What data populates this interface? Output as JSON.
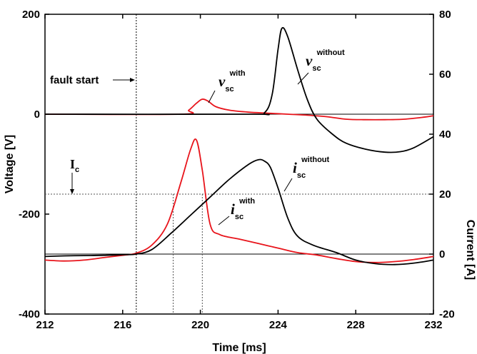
{
  "chart_data": {
    "type": "line",
    "xlabel": "Time [ms]",
    "ylabel": "Voltage [V]",
    "y2label": "Current [A]",
    "xlim": [
      212,
      232
    ],
    "ylim": [
      -400,
      200
    ],
    "y2lim": [
      -20,
      80
    ],
    "xticks": [
      "212",
      "216",
      "220",
      "224",
      "228",
      "232"
    ],
    "yticks": [
      "-400",
      "-200",
      "0",
      "200"
    ],
    "y2ticks": [
      "-20",
      "0",
      "20",
      "40",
      "60",
      "80"
    ],
    "colors": {
      "with": "#e8141b",
      "without": "#000000",
      "axis": "#000000",
      "guide": "#555555"
    },
    "annotations": {
      "fault_start": "fault start",
      "ic_main": "I",
      "ic_sub": "c",
      "v_with": {
        "main": "v",
        "sub": "sc",
        "sup": "with"
      },
      "v_without": {
        "main": "v",
        "sub": "sc",
        "sup": "without"
      },
      "i_with": {
        "main": "i",
        "sub": "sc",
        "sup": "with"
      },
      "i_without": {
        "main": "i",
        "sub": "sc",
        "sup": "without"
      }
    },
    "reference_lines": {
      "fault_time": 216.7,
      "ic_current": 20,
      "ic_cross_times": [
        218.6,
        220.1
      ],
      "zero_voltage": 0,
      "zero_current": 0
    },
    "series": [
      {
        "name": "v_sc with",
        "axis": "left",
        "color": "#e8141b",
        "points": [
          [
            212,
            0
          ],
          [
            219.0,
            0
          ],
          [
            219.4,
            8
          ],
          [
            219.8,
            22
          ],
          [
            220.1,
            30
          ],
          [
            220.4,
            26
          ],
          [
            220.8,
            15
          ],
          [
            221.5,
            8
          ],
          [
            222.5,
            4
          ],
          [
            223.5,
            2
          ],
          [
            224.5,
            0
          ],
          [
            225.5,
            -2
          ],
          [
            226.5,
            -5
          ],
          [
            227.5,
            -10
          ],
          [
            228.5,
            -11
          ],
          [
            229.5,
            -11
          ],
          [
            230.5,
            -10
          ],
          [
            231.5,
            -6
          ],
          [
            232,
            -3
          ]
        ]
      },
      {
        "name": "v_sc without",
        "axis": "left",
        "color": "#000000",
        "points": [
          [
            212,
            0
          ],
          [
            222.5,
            0
          ],
          [
            223.3,
            3
          ],
          [
            223.7,
            40
          ],
          [
            224.0,
            130
          ],
          [
            224.2,
            172
          ],
          [
            224.5,
            155
          ],
          [
            225.0,
            90
          ],
          [
            225.5,
            30
          ],
          [
            226.0,
            -10
          ],
          [
            226.8,
            -40
          ],
          [
            227.5,
            -58
          ],
          [
            228.5,
            -70
          ],
          [
            229.5,
            -76
          ],
          [
            230.3,
            -75
          ],
          [
            231.0,
            -67
          ],
          [
            232,
            -45
          ]
        ]
      },
      {
        "name": "i_sc with",
        "axis": "right",
        "color": "#e8141b",
        "points": [
          [
            212,
            -2
          ],
          [
            213,
            -2.3
          ],
          [
            214,
            -2
          ],
          [
            215,
            -1.2
          ],
          [
            216,
            -0.4
          ],
          [
            216.7,
            0.3
          ],
          [
            217.5,
            3
          ],
          [
            218.3,
            10
          ],
          [
            219.0,
            24
          ],
          [
            219.5,
            35
          ],
          [
            219.8,
            38
          ],
          [
            220.1,
            28
          ],
          [
            220.5,
            10
          ],
          [
            221.0,
            6.5
          ],
          [
            222,
            5
          ],
          [
            223,
            3.5
          ],
          [
            224,
            2
          ],
          [
            225,
            0.5
          ],
          [
            226,
            -0.3
          ],
          [
            227,
            -1.5
          ],
          [
            228,
            -2.5
          ],
          [
            229,
            -2.8
          ],
          [
            230,
            -2.5
          ],
          [
            231,
            -1.8
          ],
          [
            232,
            -0.8
          ]
        ]
      },
      {
        "name": "i_sc without",
        "axis": "right",
        "color": "#000000",
        "points": [
          [
            212,
            -0.8
          ],
          [
            213,
            -0.6
          ],
          [
            214,
            -0.5
          ],
          [
            215,
            -0.4
          ],
          [
            216,
            -0.2
          ],
          [
            216.7,
            0
          ],
          [
            217.5,
            1.5
          ],
          [
            218.5,
            7
          ],
          [
            219.5,
            13
          ],
          [
            220.5,
            19
          ],
          [
            221.5,
            25
          ],
          [
            222.5,
            30
          ],
          [
            223.0,
            31.5
          ],
          [
            223.3,
            31
          ],
          [
            223.6,
            29
          ],
          [
            224.0,
            22
          ],
          [
            224.5,
            12
          ],
          [
            225.0,
            6
          ],
          [
            225.8,
            3
          ],
          [
            227,
            0.5
          ],
          [
            228,
            -2
          ],
          [
            229,
            -3.2
          ],
          [
            230,
            -3.5
          ],
          [
            231,
            -3.0
          ],
          [
            232,
            -2
          ]
        ]
      }
    ]
  }
}
